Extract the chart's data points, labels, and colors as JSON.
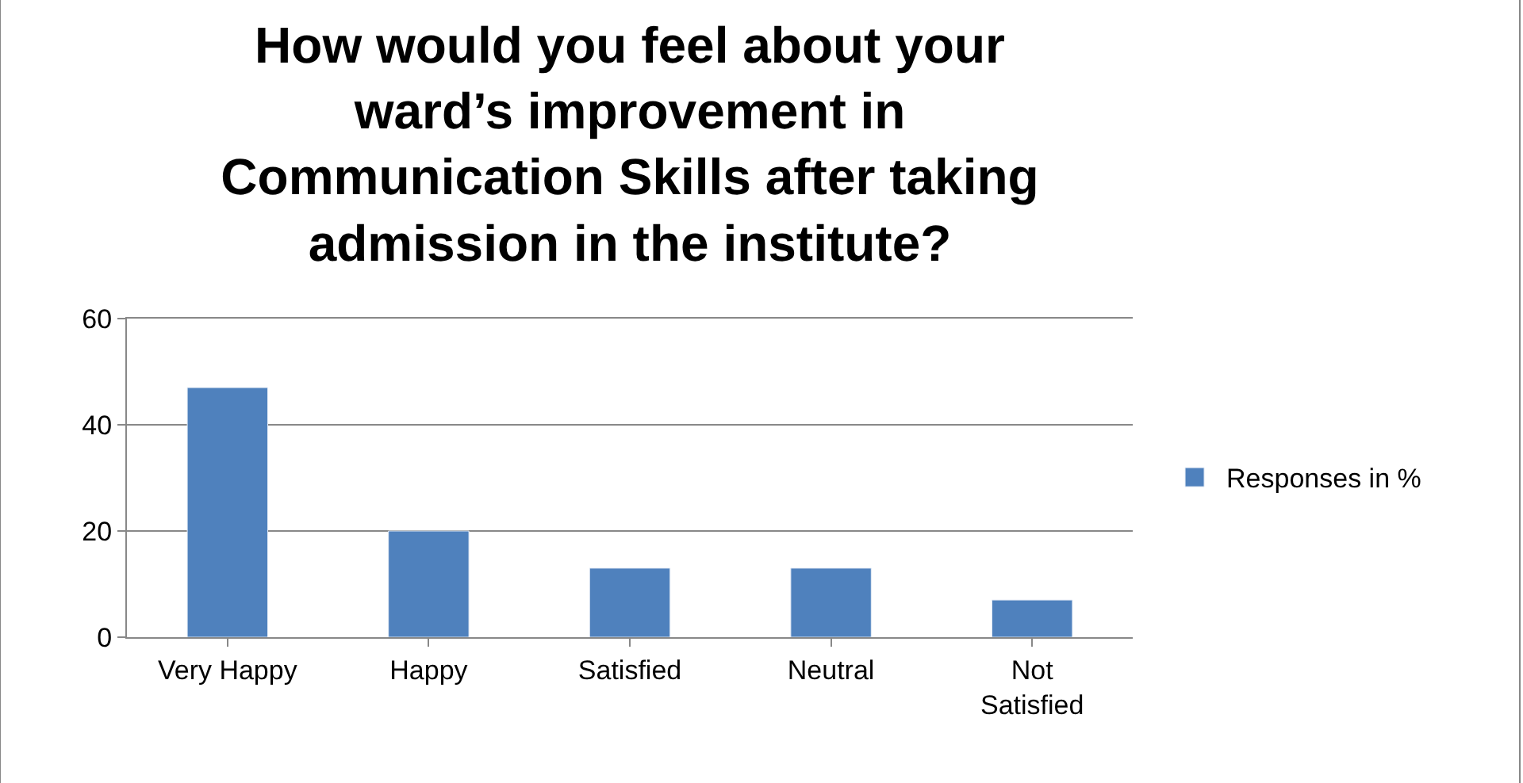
{
  "chart_data": {
    "type": "bar",
    "title": "How would you feel about your ward’s improvement in Communication Skills after taking admission in the institute?",
    "categories": [
      "Very Happy",
      "Happy",
      "Satisfied",
      "Neutral",
      "Not Satisfied"
    ],
    "series": [
      {
        "name": "Responses in %",
        "color": "#4f81bd",
        "values": [
          47,
          20,
          13,
          13,
          7
        ]
      }
    ],
    "ylim": [
      0,
      60
    ],
    "yticks": [
      0,
      20,
      40,
      60
    ],
    "grid": "y",
    "legend": "right"
  }
}
